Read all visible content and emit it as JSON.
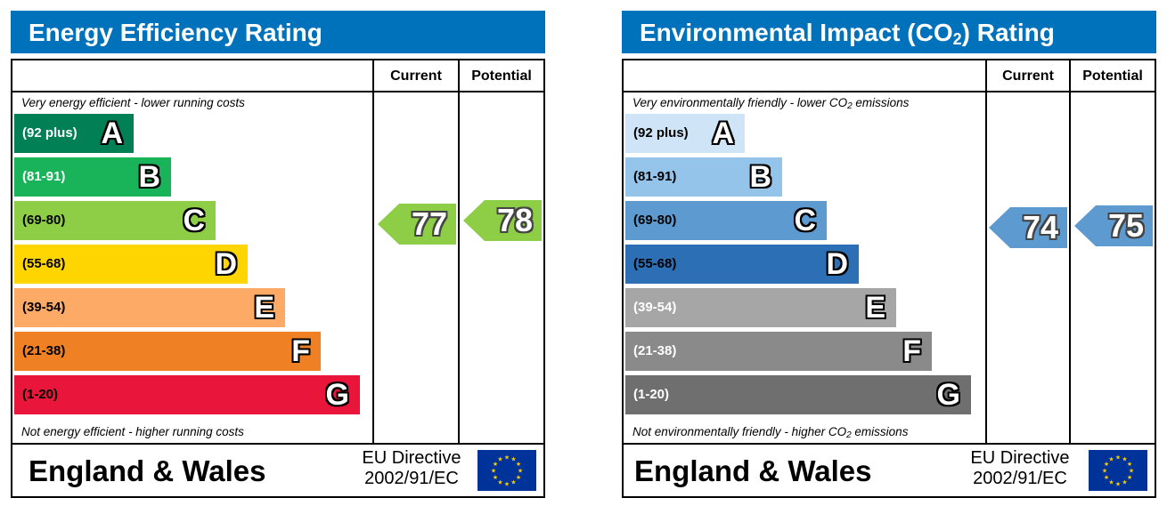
{
  "chart_data": [
    {
      "type": "bar",
      "title": "Energy Efficiency Rating",
      "column_headers": [
        "Current",
        "Potential"
      ],
      "top_note": "Very energy efficient - lower running costs",
      "bottom_note": "Not energy efficient - higher running costs",
      "categories": [
        "A",
        "B",
        "C",
        "D",
        "E",
        "F",
        "G"
      ],
      "ranges": [
        "(92 plus)",
        "(81-91)",
        "(69-80)",
        "(55-68)",
        "(39-54)",
        "(21-38)",
        "(1-20)"
      ],
      "band_colors": [
        "#008054",
        "#19b459",
        "#8dce46",
        "#ffd500",
        "#fcaa65",
        "#ef8023",
        "#e9153b"
      ],
      "current": "77",
      "potential": "78",
      "current_band": "C",
      "potential_band": "C",
      "region": "England & Wales",
      "directive_line1": "EU Directive",
      "directive_line2": "2002/91/EC"
    },
    {
      "type": "bar",
      "title_main": "Environmental Impact (CO",
      "title_sub": "2",
      "title_end": ") Rating",
      "column_headers": [
        "Current",
        "Potential"
      ],
      "top_note_a": "Very environmentally friendly - lower CO",
      "top_note_sub": "2",
      "top_note_b": " emissions",
      "bottom_note_a": "Not environmentally friendly - higher CO",
      "bottom_note_sub": "2",
      "bottom_note_b": " emissions",
      "categories": [
        "A",
        "B",
        "C",
        "D",
        "E",
        "F",
        "G"
      ],
      "ranges": [
        "(92 plus)",
        "(81-91)",
        "(69-80)",
        "(55-68)",
        "(39-54)",
        "(21-38)",
        "(1-20)"
      ],
      "band_colors": [
        "#cfe5f7",
        "#94c4ea",
        "#5d9ad0",
        "#2c6fb5",
        "#a6a6a6",
        "#8a8a8a",
        "#6f6f6f"
      ],
      "current": "74",
      "potential": "75",
      "current_band": "C",
      "potential_band": "C",
      "region": "England & Wales",
      "directive_line1": "EU Directive",
      "directive_line2": "2002/91/EC"
    }
  ]
}
